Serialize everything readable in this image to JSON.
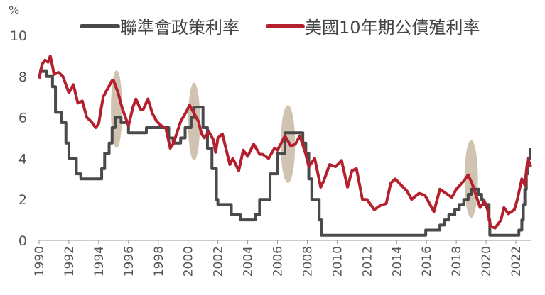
{
  "chart_data": {
    "type": "line",
    "y_unit_label": "%",
    "ylim": [
      0,
      10
    ],
    "yticks": [
      0,
      2,
      4,
      6,
      8,
      10
    ],
    "xlim": [
      1990,
      2023
    ],
    "xticks": [
      1990,
      1992,
      1994,
      1996,
      1998,
      2000,
      2002,
      2004,
      2006,
      2008,
      2010,
      2012,
      2014,
      2016,
      2018,
      2020,
      2022
    ],
    "grid": false,
    "legend_position": "top",
    "series": [
      {
        "name": "聯準會政策利率",
        "color": "#4a4a4a",
        "step": true,
        "points": [
          [
            1990.0,
            8.25
          ],
          [
            1990.5,
            8.0
          ],
          [
            1990.9,
            7.5
          ],
          [
            1991.1,
            6.25
          ],
          [
            1991.5,
            5.75
          ],
          [
            1991.8,
            4.75
          ],
          [
            1992.0,
            4.0
          ],
          [
            1992.5,
            3.25
          ],
          [
            1992.8,
            3.0
          ],
          [
            1994.0,
            3.0
          ],
          [
            1994.2,
            3.5
          ],
          [
            1994.4,
            4.25
          ],
          [
            1994.7,
            4.75
          ],
          [
            1994.9,
            5.5
          ],
          [
            1995.1,
            6.0
          ],
          [
            1995.5,
            5.75
          ],
          [
            1996.0,
            5.25
          ],
          [
            1997.2,
            5.5
          ],
          [
            1998.7,
            5.0
          ],
          [
            1999.0,
            4.75
          ],
          [
            1999.5,
            5.0
          ],
          [
            1999.8,
            5.5
          ],
          [
            2000.2,
            6.0
          ],
          [
            2000.4,
            6.5
          ],
          [
            2001.0,
            5.5
          ],
          [
            2001.3,
            4.5
          ],
          [
            2001.6,
            3.5
          ],
          [
            2001.9,
            2.0
          ],
          [
            2002.0,
            1.75
          ],
          [
            2002.9,
            1.25
          ],
          [
            2003.5,
            1.0
          ],
          [
            2004.5,
            1.25
          ],
          [
            2004.8,
            2.0
          ],
          [
            2005.5,
            3.25
          ],
          [
            2006.0,
            4.25
          ],
          [
            2006.5,
            5.25
          ],
          [
            2007.6,
            5.25
          ],
          [
            2007.7,
            4.75
          ],
          [
            2007.9,
            4.25
          ],
          [
            2008.1,
            3.0
          ],
          [
            2008.3,
            2.0
          ],
          [
            2008.8,
            1.0
          ],
          [
            2008.95,
            0.25
          ],
          [
            2015.9,
            0.25
          ],
          [
            2015.95,
            0.5
          ],
          [
            2016.9,
            0.75
          ],
          [
            2017.2,
            1.0
          ],
          [
            2017.5,
            1.25
          ],
          [
            2017.9,
            1.5
          ],
          [
            2018.2,
            1.75
          ],
          [
            2018.5,
            2.0
          ],
          [
            2018.8,
            2.25
          ],
          [
            2019.0,
            2.5
          ],
          [
            2019.5,
            2.25
          ],
          [
            2019.7,
            2.0
          ],
          [
            2019.8,
            1.75
          ],
          [
            2020.2,
            1.0
          ],
          [
            2020.25,
            0.25
          ],
          [
            2022.2,
            0.5
          ],
          [
            2022.4,
            1.0
          ],
          [
            2022.5,
            1.75
          ],
          [
            2022.6,
            2.5
          ],
          [
            2022.7,
            3.25
          ],
          [
            2022.8,
            4.0
          ],
          [
            2022.95,
            4.5
          ]
        ]
      },
      {
        "name": "美國10年期公債殖利率",
        "color": "#b5202e",
        "step": false,
        "points": [
          [
            1990.0,
            7.9
          ],
          [
            1990.2,
            8.6
          ],
          [
            1990.4,
            8.8
          ],
          [
            1990.6,
            8.7
          ],
          [
            1990.75,
            9.0
          ],
          [
            1990.9,
            8.5
          ],
          [
            1991.0,
            8.1
          ],
          [
            1991.3,
            8.2
          ],
          [
            1991.6,
            8.0
          ],
          [
            1991.9,
            7.4
          ],
          [
            1992.0,
            7.2
          ],
          [
            1992.3,
            7.6
          ],
          [
            1992.6,
            6.7
          ],
          [
            1992.9,
            6.8
          ],
          [
            1993.2,
            6.0
          ],
          [
            1993.5,
            5.8
          ],
          [
            1993.8,
            5.5
          ],
          [
            1994.0,
            5.7
          ],
          [
            1994.3,
            7.0
          ],
          [
            1994.6,
            7.4
          ],
          [
            1994.9,
            7.8
          ],
          [
            1995.0,
            7.8
          ],
          [
            1995.3,
            7.2
          ],
          [
            1995.6,
            6.4
          ],
          [
            1995.9,
            5.8
          ],
          [
            1996.0,
            5.6
          ],
          [
            1996.3,
            6.5
          ],
          [
            1996.5,
            6.9
          ],
          [
            1996.8,
            6.4
          ],
          [
            1997.0,
            6.4
          ],
          [
            1997.3,
            6.9
          ],
          [
            1997.6,
            6.2
          ],
          [
            1997.9,
            5.8
          ],
          [
            1998.2,
            5.6
          ],
          [
            1998.5,
            5.5
          ],
          [
            1998.8,
            4.5
          ],
          [
            1999.0,
            4.7
          ],
          [
            1999.5,
            5.8
          ],
          [
            1999.9,
            6.3
          ],
          [
            2000.1,
            6.6
          ],
          [
            2000.4,
            6.2
          ],
          [
            2000.7,
            5.8
          ],
          [
            2000.9,
            5.2
          ],
          [
            2001.1,
            5.0
          ],
          [
            2001.4,
            5.3
          ],
          [
            2001.7,
            4.9
          ],
          [
            2001.85,
            4.3
          ],
          [
            2002.0,
            5.0
          ],
          [
            2002.3,
            5.2
          ],
          [
            2002.6,
            4.3
          ],
          [
            2002.8,
            3.7
          ],
          [
            2003.0,
            4.0
          ],
          [
            2003.4,
            3.4
          ],
          [
            2003.7,
            4.4
          ],
          [
            2004.0,
            4.1
          ],
          [
            2004.4,
            4.7
          ],
          [
            2004.8,
            4.2
          ],
          [
            2005.0,
            4.2
          ],
          [
            2005.4,
            4.0
          ],
          [
            2005.8,
            4.5
          ],
          [
            2006.0,
            4.4
          ],
          [
            2006.5,
            5.1
          ],
          [
            2006.9,
            4.6
          ],
          [
            2007.2,
            4.7
          ],
          [
            2007.5,
            5.1
          ],
          [
            2007.9,
            4.2
          ],
          [
            2008.1,
            3.6
          ],
          [
            2008.5,
            4.0
          ],
          [
            2008.9,
            2.6
          ],
          [
            2009.1,
            2.9
          ],
          [
            2009.5,
            3.7
          ],
          [
            2009.9,
            3.6
          ],
          [
            2010.3,
            3.9
          ],
          [
            2010.7,
            2.6
          ],
          [
            2011.0,
            3.4
          ],
          [
            2011.3,
            3.5
          ],
          [
            2011.7,
            2.0
          ],
          [
            2012.0,
            2.0
          ],
          [
            2012.5,
            1.5
          ],
          [
            2012.9,
            1.7
          ],
          [
            2013.3,
            1.8
          ],
          [
            2013.6,
            2.8
          ],
          [
            2013.9,
            3.0
          ],
          [
            2014.3,
            2.7
          ],
          [
            2014.7,
            2.4
          ],
          [
            2015.0,
            2.0
          ],
          [
            2015.5,
            2.3
          ],
          [
            2015.9,
            2.2
          ],
          [
            2016.2,
            1.8
          ],
          [
            2016.5,
            1.4
          ],
          [
            2016.9,
            2.5
          ],
          [
            2017.3,
            2.3
          ],
          [
            2017.7,
            2.1
          ],
          [
            2018.0,
            2.5
          ],
          [
            2018.5,
            2.9
          ],
          [
            2018.8,
            3.2
          ],
          [
            2019.1,
            2.7
          ],
          [
            2019.6,
            1.6
          ],
          [
            2019.9,
            1.9
          ],
          [
            2020.1,
            1.5
          ],
          [
            2020.3,
            0.7
          ],
          [
            2020.6,
            0.6
          ],
          [
            2021.0,
            1.0
          ],
          [
            2021.2,
            1.6
          ],
          [
            2021.5,
            1.3
          ],
          [
            2021.9,
            1.5
          ],
          [
            2022.1,
            2.0
          ],
          [
            2022.4,
            3.0
          ],
          [
            2022.6,
            2.7
          ],
          [
            2022.8,
            4.0
          ],
          [
            2023.0,
            3.6
          ]
        ]
      }
    ],
    "highlights": [
      {
        "x": 1995.2,
        "y": 6.4,
        "rx": 0.38,
        "ry": 1.9
      },
      {
        "x": 2000.4,
        "y": 5.8,
        "rx": 0.4,
        "ry": 1.9
      },
      {
        "x": 2006.7,
        "y": 4.7,
        "rx": 0.48,
        "ry": 1.9
      },
      {
        "x": 2019.0,
        "y": 3.0,
        "rx": 0.45,
        "ry": 1.9
      }
    ]
  }
}
